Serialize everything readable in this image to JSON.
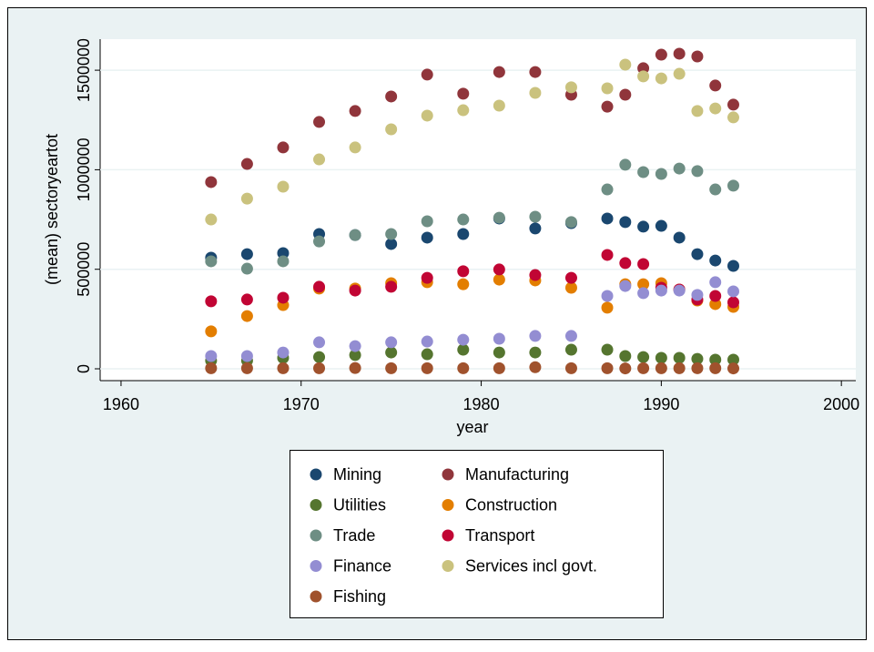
{
  "chart_data": {
    "type": "scatter",
    "xlabel": "year",
    "ylabel": "(mean) sectoryeartot",
    "xlim": [
      1958.84,
      2000.8
    ],
    "ylim": [
      -59470,
      1656000
    ],
    "xticks": [
      1960,
      1970,
      1980,
      1990,
      2000
    ],
    "yticks": [
      0,
      500000,
      1000000,
      1500000
    ],
    "grid": true,
    "legend": "bottom",
    "x": [
      1965,
      1967,
      1969,
      1971,
      1973,
      1975,
      1977,
      1979,
      1981,
      1983,
      1985,
      1987,
      1988,
      1989,
      1990,
      1991,
      1992,
      1993,
      1994
    ],
    "series": [
      {
        "name": "Mining",
        "color": "#1a476f",
        "values": [
          558000,
          576000,
          581000,
          677000,
          672000,
          627000,
          659000,
          677000,
          755000,
          705000,
          732000,
          755000,
          737000,
          714000,
          718000,
          659000,
          576000,
          544000,
          517000
        ]
      },
      {
        "name": "Manufacturing",
        "color": "#90353b",
        "values": [
          938000,
          1029000,
          1112000,
          1240000,
          1295000,
          1368000,
          1478000,
          1382000,
          1491000,
          1491000,
          1377000,
          1317000,
          1377000,
          1510000,
          1578000,
          1583000,
          1569000,
          1423000,
          1327000
        ]
      },
      {
        "name": "Utilities",
        "color": "#55752f",
        "values": [
          41000,
          41000,
          55000,
          59000,
          69000,
          82000,
          73000,
          96000,
          82000,
          82000,
          96000,
          96000,
          64000,
          59000,
          55000,
          55000,
          50000,
          46000,
          46000
        ]
      },
      {
        "name": "Construction",
        "color": "#e37e00",
        "values": [
          188000,
          265000,
          320000,
          403000,
          403000,
          430000,
          435000,
          425000,
          448000,
          444000,
          407000,
          307000,
          425000,
          425000,
          430000,
          398000,
          343000,
          325000,
          311000
        ]
      },
      {
        "name": "Trade",
        "color": "#6e8e84",
        "values": [
          540000,
          503000,
          540000,
          640000,
          672000,
          677000,
          741000,
          750000,
          759000,
          764000,
          737000,
          901000,
          1025000,
          988000,
          979000,
          1006000,
          993000,
          901000,
          920000
        ]
      },
      {
        "name": "Transport",
        "color": "#c10534",
        "values": [
          339000,
          348000,
          357000,
          412000,
          393000,
          412000,
          457000,
          490000,
          499000,
          471000,
          457000,
          572000,
          531000,
          526000,
          407000,
          398000,
          348000,
          366000,
          334000
        ]
      },
      {
        "name": "Finance",
        "color": "#938dd2",
        "values": [
          64000,
          64000,
          82000,
          133000,
          114000,
          133000,
          137000,
          146000,
          151000,
          165000,
          165000,
          366000,
          416000,
          380000,
          393000,
          393000,
          371000,
          435000,
          389000
        ]
      },
      {
        "name": "Services incl govt.",
        "color": "#cac27e",
        "values": [
          750000,
          855000,
          915000,
          1052000,
          1112000,
          1203000,
          1272000,
          1299000,
          1322000,
          1386000,
          1414000,
          1409000,
          1528000,
          1469000,
          1459000,
          1482000,
          1295000,
          1308000,
          1263000
        ]
      },
      {
        "name": "Fishing",
        "color": "#a0522d",
        "values": [
          3000,
          3000,
          3000,
          3000,
          4000,
          3000,
          3000,
          3000,
          3000,
          8000,
          3000,
          3000,
          2000,
          3000,
          3000,
          3000,
          3000,
          3000,
          2000
        ]
      }
    ]
  }
}
